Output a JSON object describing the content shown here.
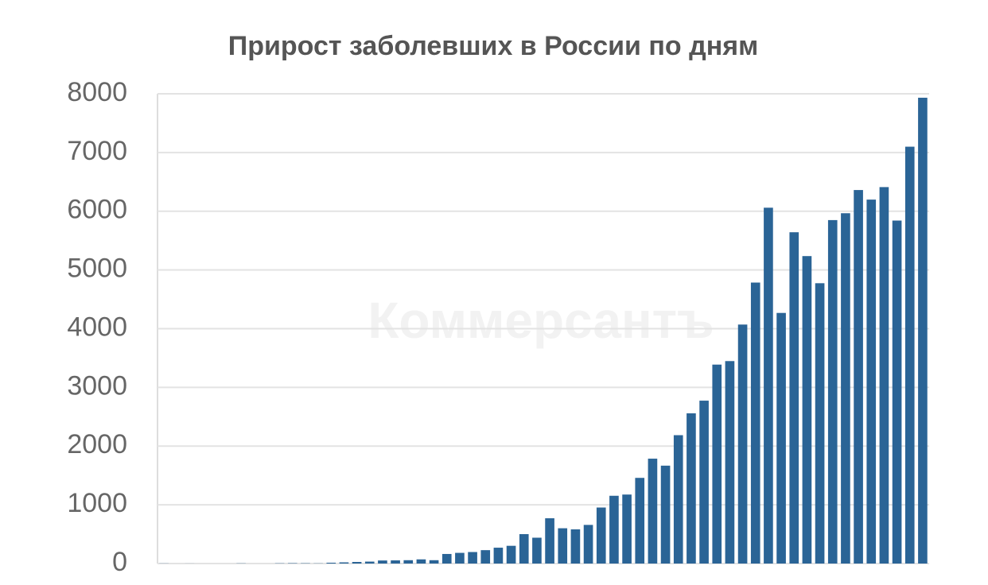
{
  "chart_data": {
    "type": "bar",
    "title": "Прирост заболевших в России по дням",
    "watermark": "Коммерсантъ",
    "values": [
      2,
      0,
      1,
      0,
      0,
      0,
      3,
      0,
      0,
      4,
      6,
      5,
      3,
      14,
      20,
      27,
      33,
      52,
      54,
      57,
      71,
      57,
      163,
      182,
      196,
      228,
      270,
      302,
      501,
      440,
      771,
      601,
      582,
      658,
      954,
      1154,
      1175,
      1459,
      1786,
      1667,
      2186,
      2558,
      2774,
      3388,
      3448,
      4070,
      4785,
      6060,
      4268,
      5642,
      5236,
      4774,
      5849,
      5966,
      6361,
      6198,
      6411,
      5841,
      7099,
      7933
    ],
    "color": "#2a6496",
    "ylim": [
      0,
      8000
    ],
    "yticks": [
      0,
      1000,
      2000,
      3000,
      4000,
      5000,
      6000,
      7000,
      8000
    ],
    "grid": true
  }
}
